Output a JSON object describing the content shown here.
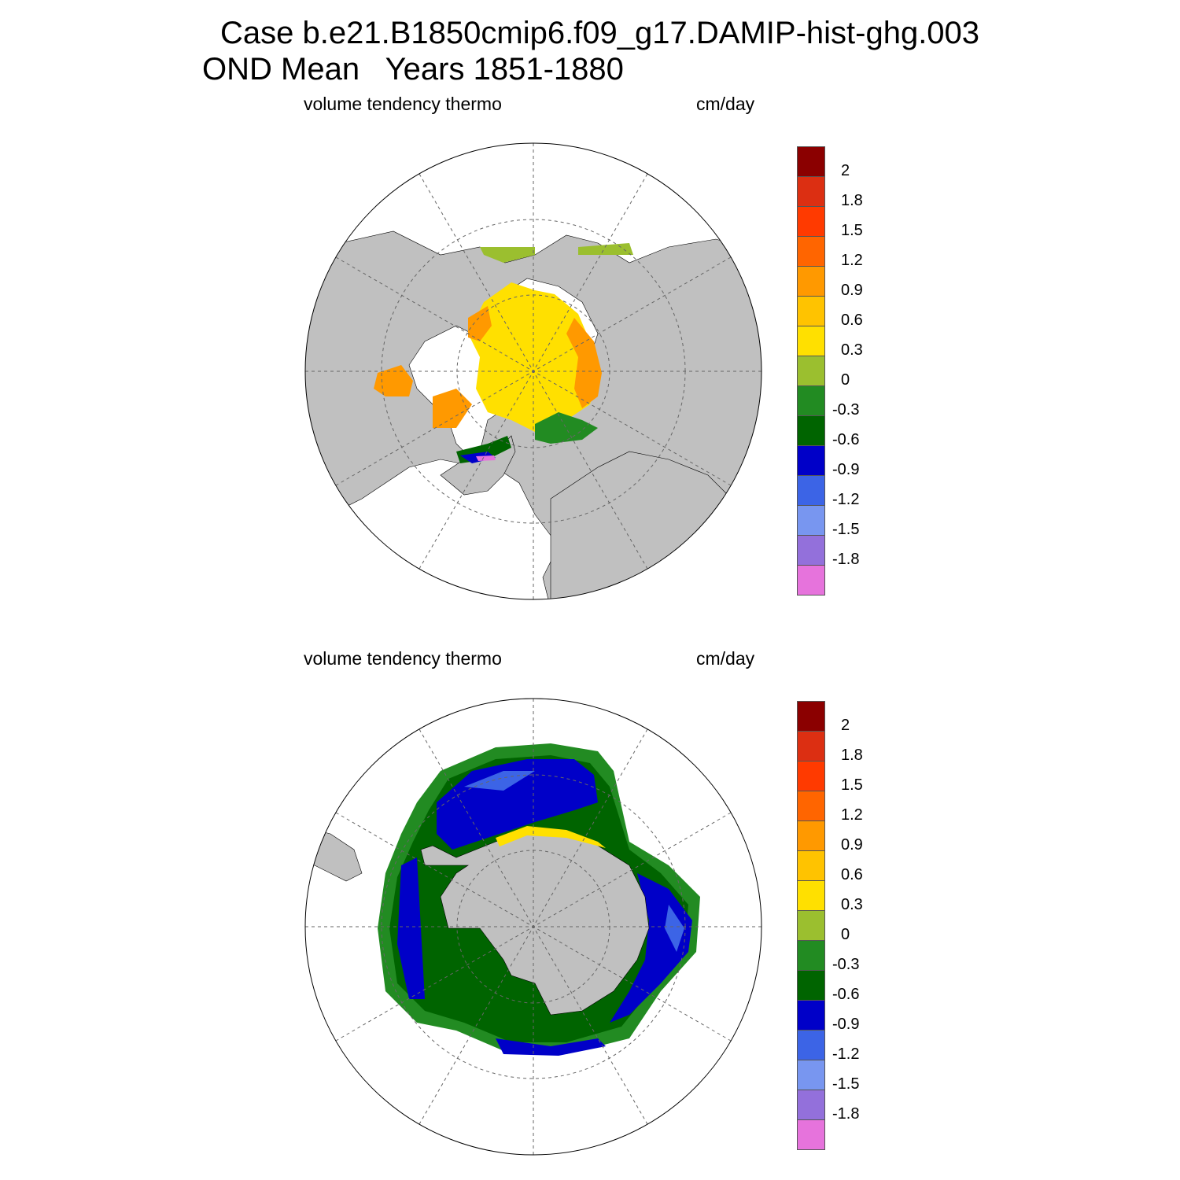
{
  "titles": {
    "line1": "Case b.e21.B1850cmip6.f09_g17.DAMIP-hist-ghg.003",
    "line2": "OND Mean   Years 1851-1880"
  },
  "panels": [
    {
      "name": "north",
      "left_label": "volume tendency thermo",
      "right_label": "cm/day"
    },
    {
      "name": "south",
      "left_label": "volume tendency thermo",
      "right_label": "cm/day"
    }
  ],
  "colorbar": {
    "labels": [
      "2",
      "1.8",
      "1.5",
      "1.2",
      "0.9",
      "0.6",
      "0.3",
      "0",
      "-0.3",
      "-0.6",
      "-0.9",
      "-1.2",
      "-1.5",
      "-1.8"
    ],
    "colors": [
      "#8B0000",
      "#DC2F12",
      "#FF3A00",
      "#FF6500",
      "#FF9900",
      "#FFC300",
      "#FFE000",
      "#9BBF2F",
      "#228B22",
      "#006400",
      "#0000C8",
      "#3C64E6",
      "#7896F0",
      "#9370DB",
      "#E673DC"
    ]
  },
  "map_colors": {
    "land": "#C0C0C0",
    "ocean": "#FFFFFF",
    "grid": "#666666"
  }
}
